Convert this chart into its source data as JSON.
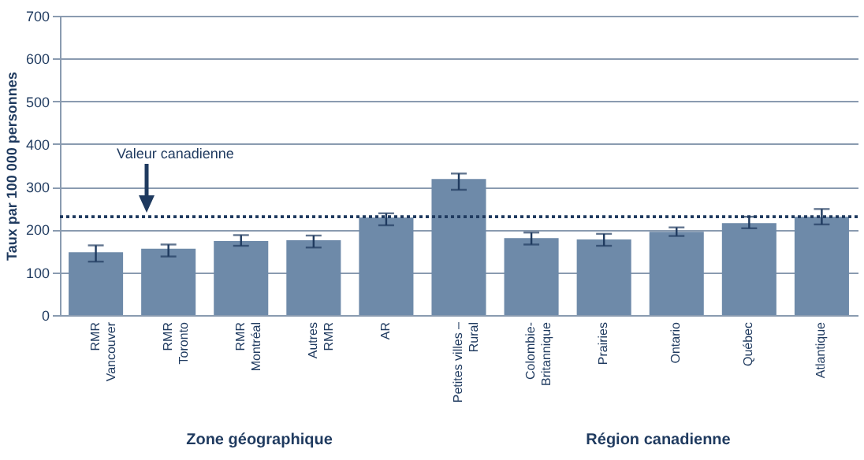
{
  "chart_data": {
    "type": "bar",
    "ylabel": "Taux par 100 000 personnes",
    "categories": [
      "RMR\nVancouver",
      "RMR\nToronto",
      "RMR\nMontréal",
      "Autres\nRMR",
      "AR",
      "Petites villes –\nRural",
      "Colombie-\nBritannique",
      "Prairies",
      "Ontario",
      "Québec",
      "Atlantique"
    ],
    "values": [
      147,
      155,
      173,
      175,
      228,
      318,
      180,
      177,
      195,
      215,
      230
    ],
    "errors": [
      [
        125,
        163
      ],
      [
        137,
        165
      ],
      [
        162,
        187
      ],
      [
        158,
        186
      ],
      [
        210,
        238
      ],
      [
        293,
        331
      ],
      [
        165,
        193
      ],
      [
        162,
        190
      ],
      [
        185,
        205
      ],
      [
        203,
        230
      ],
      [
        212,
        248
      ]
    ],
    "color": "#6e8aa9",
    "ylim": [
      0,
      700
    ],
    "yticks": [
      0,
      100,
      200,
      300,
      400,
      500,
      600,
      700
    ],
    "grid": "y",
    "ref_lines": [
      {
        "axis": "y",
        "value": 230,
        "label": "Valeur canadienne",
        "color": "#1f3a5f",
        "line_style": "dotted"
      }
    ],
    "annotations": [
      "Zone géographique",
      "Région canadienne"
    ]
  }
}
